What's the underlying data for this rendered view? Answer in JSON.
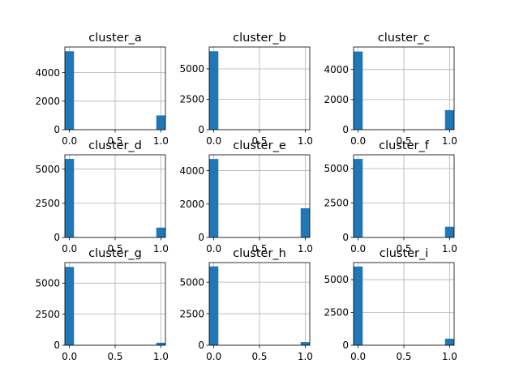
{
  "chart_data": [
    {
      "type": "bar",
      "title": "cluster_a",
      "x": [
        0.0,
        1.0
      ],
      "values": [
        5500,
        1000
      ],
      "ylim": [
        0,
        5800
      ],
      "xlim": [
        -0.05,
        1.05
      ],
      "yticks": [
        0,
        2000,
        4000
      ],
      "xticks": [
        "0.0",
        "0.5",
        "1.0"
      ],
      "grid": true
    },
    {
      "type": "bar",
      "title": "cluster_b",
      "x": [
        0.0,
        1.0
      ],
      "values": [
        6450,
        0
      ],
      "ylim": [
        0,
        6800
      ],
      "xlim": [
        -0.05,
        1.05
      ],
      "yticks": [
        0,
        2500,
        5000
      ],
      "xticks": [
        "0.0",
        "0.5",
        "1.0"
      ],
      "grid": true
    },
    {
      "type": "bar",
      "title": "cluster_c",
      "x": [
        0.0,
        1.0
      ],
      "values": [
        5200,
        1300
      ],
      "ylim": [
        0,
        5500
      ],
      "xlim": [
        -0.05,
        1.05
      ],
      "yticks": [
        0,
        2000,
        4000
      ],
      "xticks": [
        "0.0",
        "0.5",
        "1.0"
      ],
      "grid": true
    },
    {
      "type": "bar",
      "title": "cluster_d",
      "x": [
        0.0,
        1.0
      ],
      "values": [
        5750,
        720
      ],
      "ylim": [
        0,
        6050
      ],
      "xlim": [
        -0.05,
        1.05
      ],
      "yticks": [
        0,
        2500,
        5000
      ],
      "xticks": [
        "0.0",
        "0.5",
        "1.0"
      ],
      "grid": true
    },
    {
      "type": "bar",
      "title": "cluster_e",
      "x": [
        0.0,
        1.0
      ],
      "values": [
        4700,
        1750
      ],
      "ylim": [
        0,
        4950
      ],
      "xlim": [
        -0.05,
        1.05
      ],
      "yticks": [
        0,
        2000,
        4000
      ],
      "xticks": [
        "0.0",
        "0.5",
        "1.0"
      ],
      "grid": true
    },
    {
      "type": "bar",
      "title": "cluster_f",
      "x": [
        0.0,
        1.0
      ],
      "values": [
        5700,
        780
      ],
      "ylim": [
        0,
        6000
      ],
      "xlim": [
        -0.05,
        1.05
      ],
      "yticks": [
        0,
        2500,
        5000
      ],
      "xticks": [
        "0.0",
        "0.5",
        "1.0"
      ],
      "grid": true
    },
    {
      "type": "bar",
      "title": "cluster_g",
      "x": [
        0.0,
        1.0
      ],
      "values": [
        6300,
        200
      ],
      "ylim": [
        0,
        6650
      ],
      "xlim": [
        -0.05,
        1.05
      ],
      "yticks": [
        0,
        2500,
        5000
      ],
      "xticks": [
        "0.0",
        "0.5",
        "1.0"
      ],
      "grid": true
    },
    {
      "type": "bar",
      "title": "cluster_h",
      "x": [
        0.0,
        1.0
      ],
      "values": [
        6250,
        250
      ],
      "ylim": [
        0,
        6550
      ],
      "xlim": [
        -0.05,
        1.05
      ],
      "yticks": [
        0,
        2500,
        5000
      ],
      "xticks": [
        "0.0",
        "0.5",
        "1.0"
      ],
      "grid": true
    },
    {
      "type": "bar",
      "title": "cluster_i",
      "x": [
        0.0,
        1.0
      ],
      "values": [
        6000,
        500
      ],
      "ylim": [
        0,
        6300
      ],
      "xlim": [
        -0.05,
        1.05
      ],
      "yticks": [
        0,
        2500,
        5000
      ],
      "xticks": [
        "0.0",
        "0.5",
        "1.0"
      ],
      "grid": true
    }
  ],
  "colors": {
    "bar": "#1f77b4",
    "grid": "#b0b0b0"
  }
}
